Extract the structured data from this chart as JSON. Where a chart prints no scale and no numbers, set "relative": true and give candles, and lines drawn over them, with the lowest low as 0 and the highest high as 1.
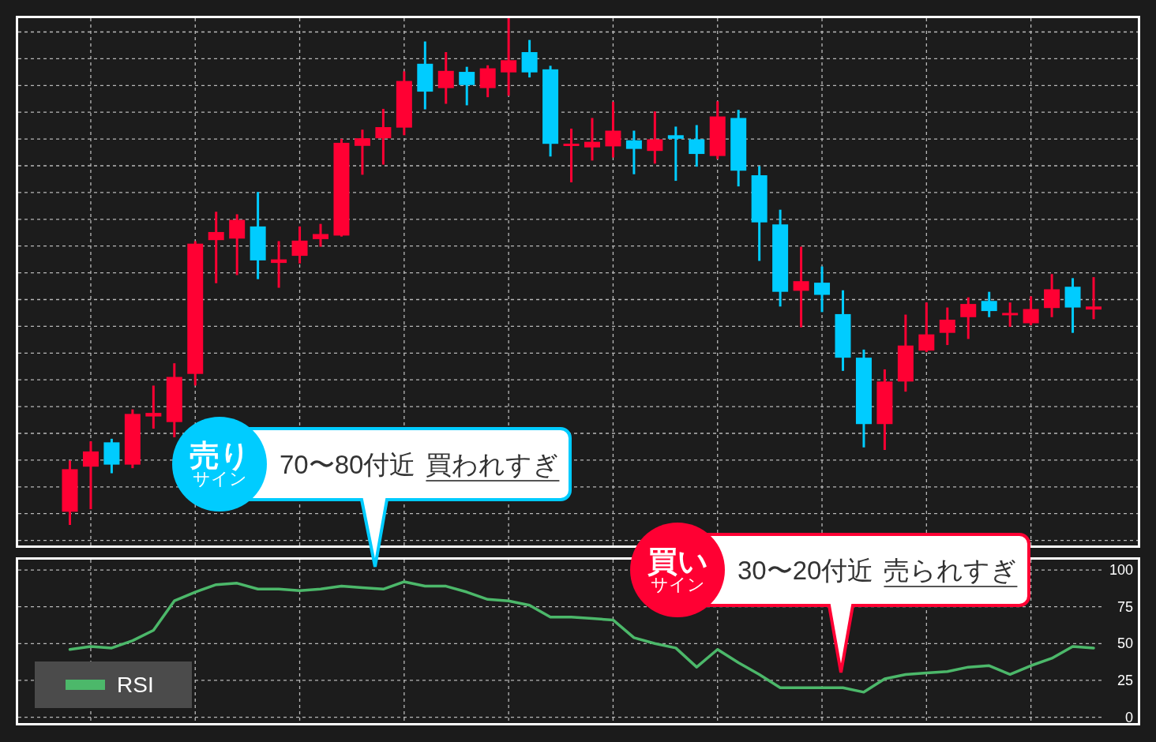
{
  "chart_data": [
    {
      "type": "candlestick",
      "relative": true,
      "grid": true,
      "categories": [
        null,
        null,
        null,
        null,
        null,
        null,
        null,
        null,
        null,
        null,
        null,
        null,
        null,
        null,
        null,
        null,
        null,
        null,
        null,
        null,
        null,
        null,
        null,
        null,
        null,
        null,
        null,
        null,
        null,
        null,
        null,
        null,
        null,
        null,
        null,
        null,
        null,
        null,
        null,
        null,
        null,
        null,
        null,
        null,
        null,
        null,
        null,
        null,
        null,
        null
      ],
      "ohlc": [
        [
          0.026,
          0.127,
          0,
          0.11
        ],
        [
          0.115,
          0.165,
          0.031,
          0.145
        ],
        [
          0.163,
          0.17,
          0.102,
          0.119
        ],
        [
          0.119,
          0.228,
          0.112,
          0.219
        ],
        [
          0.214,
          0.275,
          0.19,
          0.221
        ],
        [
          0.203,
          0.319,
          0.173,
          0.292
        ],
        [
          0.298,
          0.56,
          0.275,
          0.555
        ],
        [
          0.562,
          0.618,
          0.477,
          0.578
        ],
        [
          0.565,
          0.613,
          0.493,
          0.602
        ],
        [
          0.589,
          0.657,
          0.485,
          0.522
        ],
        [
          0.517,
          0.56,
          0.468,
          0.524
        ],
        [
          0.531,
          0.589,
          0.516,
          0.561
        ],
        [
          0.564,
          0.594,
          0.549,
          0.574
        ],
        [
          0.571,
          0.762,
          0.569,
          0.754
        ],
        [
          0.748,
          0.78,
          0.691,
          0.763
        ],
        [
          0.763,
          0.821,
          0.711,
          0.785
        ],
        [
          0.784,
          0.895,
          0.769,
          0.876
        ],
        [
          0.91,
          0.954,
          0.82,
          0.855
        ],
        [
          0.862,
          0.933,
          0.831,
          0.896
        ],
        [
          0.894,
          0.904,
          0.828,
          0.868
        ],
        [
          0.862,
          0.907,
          0.844,
          0.901
        ],
        [
          0.893,
          1,
          0.847,
          0.917
        ],
        [
          0.933,
          0.957,
          0.883,
          0.893
        ],
        [
          0.899,
          0.906,
          0.727,
          0.752
        ],
        [
          0.748,
          0.782,
          0.676,
          0.752
        ],
        [
          0.745,
          0.803,
          0.719,
          0.756
        ],
        [
          0.747,
          0.835,
          0.725,
          0.778
        ],
        [
          0.759,
          0.778,
          0.692,
          0.742
        ],
        [
          0.738,
          0.816,
          0.713,
          0.761
        ],
        [
          0.769,
          0.786,
          0.679,
          0.762
        ],
        [
          0.761,
          0.789,
          0.707,
          0.732
        ],
        [
          0.728,
          0.836,
          0.722,
          0.806
        ],
        [
          0.803,
          0.819,
          0.668,
          0.699
        ],
        [
          0.69,
          0.708,
          0.521,
          0.597
        ],
        [
          0.593,
          0.622,
          0.431,
          0.46
        ],
        [
          0.462,
          0.549,
          0.39,
          0.481
        ],
        [
          0.478,
          0.51,
          0.42,
          0.454
        ],
        [
          0.416,
          0.463,
          0.304,
          0.33
        ],
        [
          0.33,
          0.346,
          0.153,
          0.199
        ],
        [
          0.199,
          0.307,
          0.148,
          0.283
        ],
        [
          0.283,
          0.415,
          0.263,
          0.354
        ],
        [
          0.344,
          0.439,
          0.341,
          0.376
        ],
        [
          0.379,
          0.429,
          0.355,
          0.405
        ],
        [
          0.41,
          0.449,
          0.367,
          0.436
        ],
        [
          0.442,
          0.46,
          0.41,
          0.422
        ],
        [
          0.414,
          0.439,
          0.391,
          0.418
        ],
        [
          0.398,
          0.451,
          0.394,
          0.426
        ],
        [
          0.428,
          0.495,
          0.41,
          0.465
        ],
        [
          0.47,
          0.487,
          0.379,
          0.429
        ],
        [
          0.425,
          0.489,
          0.406,
          0.431
        ]
      ],
      "colors": [
        "#ff0033",
        "#ff0033",
        "#00ccff",
        "#ff0033",
        "#ff0033",
        "#ff0033",
        "#ff0033",
        "#ff0033",
        "#ff0033",
        "#00ccff",
        "#ff0033",
        "#ff0033",
        "#ff0033",
        "#ff0033",
        "#ff0033",
        "#ff0033",
        "#ff0033",
        "#00ccff",
        "#ff0033",
        "#00ccff",
        "#ff0033",
        "#ff0033",
        "#00ccff",
        "#00ccff",
        "#ff0033",
        "#ff0033",
        "#ff0033",
        "#00ccff",
        "#ff0033",
        "#00ccff",
        "#00ccff",
        "#ff0033",
        "#00ccff",
        "#00ccff",
        "#00ccff",
        "#ff0033",
        "#00ccff",
        "#00ccff",
        "#00ccff",
        "#ff0033",
        "#ff0033",
        "#ff0033",
        "#ff0033",
        "#ff0033",
        "#00ccff",
        "#ff0033",
        "#ff0033",
        "#ff0033",
        "#00ccff",
        "#ff0033"
      ]
    },
    {
      "type": "line",
      "grid": true,
      "legend": "bottom left",
      "tick_labels": "y",
      "categories": [
        null,
        null,
        null,
        null,
        null,
        null,
        null,
        null,
        null,
        null,
        null,
        null,
        null,
        null,
        null,
        null,
        null,
        null,
        null,
        null,
        null,
        null,
        null,
        null,
        null,
        null,
        null,
        null,
        null,
        null,
        null,
        null,
        null,
        null,
        null,
        null,
        null,
        null,
        null,
        null,
        null,
        null,
        null,
        null,
        null,
        null,
        null,
        null,
        null,
        null
      ],
      "series": [
        {
          "name": "RSI",
          "color": "#4cb86a",
          "values": [
            46,
            48,
            47,
            52,
            59,
            79,
            85,
            90,
            91,
            87,
            87,
            86,
            87,
            89,
            88,
            87,
            92,
            89,
            89,
            85,
            80,
            79,
            76,
            68,
            68,
            67,
            66,
            54,
            50,
            47,
            34,
            46,
            37,
            29,
            20,
            20,
            20,
            20,
            17,
            26,
            29,
            30,
            31,
            34,
            35,
            29,
            35,
            40,
            48,
            47
          ]
        }
      ],
      "ylim": [
        -4,
        107
      ],
      "yticks": [
        0,
        25,
        50,
        75,
        100
      ],
      "annotations": [
        "売り",
        "サイン",
        "70〜80付近",
        "買われすぎ",
        "買い",
        "サイン",
        "30〜20付近",
        "売られすぎ"
      ]
    }
  ]
}
